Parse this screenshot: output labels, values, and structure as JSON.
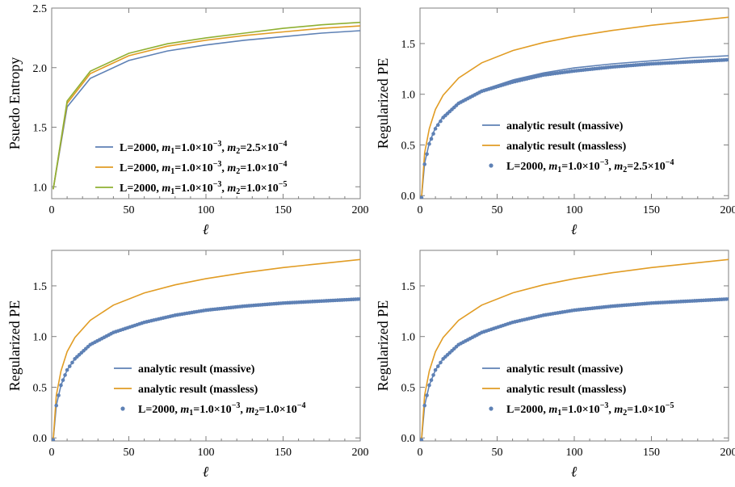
{
  "colors": {
    "massive": "#5e81b5",
    "massless": "#e19c24",
    "green": "#8fb032",
    "blue": "#5e81b5",
    "orange": "#e19c24"
  },
  "chart_data": [
    {
      "type": "line",
      "title": "",
      "xlabel": "ℓ",
      "ylabel": "Psuedo Entropy",
      "xlim": [
        0,
        200
      ],
      "ylim": [
        0.9,
        2.5
      ],
      "xticks": [
        0,
        50,
        100,
        150,
        200
      ],
      "xtick_labels": [
        "0",
        "50",
        "100",
        "150",
        "200"
      ],
      "yticks": [
        1.0,
        1.5,
        2.0,
        2.5
      ],
      "ytick_labels": [
        "1.0",
        "1.5",
        "2.0",
        "2.5"
      ],
      "legend_position": "bottom-right",
      "x": [
        1,
        10,
        25,
        50,
        75,
        100,
        125,
        150,
        175,
        200
      ],
      "series": [
        {
          "name": "L=2000, m1=1.0×10−3, m2=2.5×10−4",
          "legend": {
            "prefix": "L=2000, ",
            "m1": "=1.0×10",
            "e1": "−3",
            "m2": "=2.5×10",
            "e2": "−4"
          },
          "color": "#5e81b5",
          "style": "line",
          "values": [
            0.98,
            1.67,
            1.91,
            2.06,
            2.14,
            2.19,
            2.23,
            2.26,
            2.29,
            2.31
          ]
        },
        {
          "name": "L=2000, m1=1.0×10−3, m2=1.0×10−4",
          "legend": {
            "prefix": "L=2000, ",
            "m1": "=1.0×10",
            "e1": "−3",
            "m2": "=1.0×10",
            "e2": "−4"
          },
          "color": "#e19c24",
          "style": "line",
          "values": [
            0.98,
            1.7,
            1.95,
            2.1,
            2.18,
            2.23,
            2.27,
            2.3,
            2.33,
            2.35
          ]
        },
        {
          "name": "L=2000, m1=1.0×10−3, m2=1.0×10−5",
          "legend": {
            "prefix": "L=2000, ",
            "m1": "=1.0×10",
            "e1": "−3",
            "m2": "=1.0×10",
            "e2": "−5"
          },
          "color": "#8fb032",
          "style": "line",
          "values": [
            0.98,
            1.72,
            1.97,
            2.12,
            2.2,
            2.25,
            2.29,
            2.33,
            2.36,
            2.38
          ]
        }
      ]
    },
    {
      "type": "line",
      "title": "",
      "xlabel": "ℓ",
      "ylabel": "Regularized PE",
      "xlim": [
        0,
        200
      ],
      "ylim": [
        -0.03,
        1.85
      ],
      "xticks": [
        0,
        50,
        100,
        150,
        200
      ],
      "xtick_labels": [
        "0",
        "50",
        "100",
        "150",
        "200"
      ],
      "yticks": [
        0.0,
        0.5,
        1.0,
        1.5
      ],
      "ytick_labels": [
        "0.0",
        "0.5",
        "1.0",
        "1.5"
      ],
      "legend_position": "bottom-right",
      "x": [
        1,
        3,
        6,
        10,
        15,
        25,
        40,
        60,
        80,
        100,
        125,
        150,
        175,
        200
      ],
      "series": [
        {
          "name": "analytic result (massive)",
          "legend": {
            "text": "analytic result (massive)"
          },
          "color": "#5e81b5",
          "style": "line",
          "values": [
            -0.02,
            0.32,
            0.52,
            0.67,
            0.78,
            0.92,
            1.04,
            1.14,
            1.21,
            1.26,
            1.3,
            1.33,
            1.36,
            1.38
          ]
        },
        {
          "name": "analytic result (massless)",
          "legend": {
            "text": "analytic result (massless)"
          },
          "color": "#e19c24",
          "style": "line",
          "values": [
            -0.02,
            0.42,
            0.66,
            0.85,
            0.99,
            1.16,
            1.31,
            1.43,
            1.51,
            1.57,
            1.63,
            1.68,
            1.72,
            1.76
          ]
        },
        {
          "name": "L=2000, m1=1.0×10−3, m2=2.5×10−4",
          "legend": {
            "prefix": "L=2000, ",
            "m1": "=1.0×10",
            "e1": "−3",
            "m2": "=2.5×10",
            "e2": "−4"
          },
          "color": "#5e81b5",
          "style": "points",
          "values": [
            -0.02,
            0.31,
            0.51,
            0.66,
            0.77,
            0.91,
            1.03,
            1.12,
            1.19,
            1.23,
            1.27,
            1.3,
            1.32,
            1.34
          ]
        }
      ]
    },
    {
      "type": "line",
      "title": "",
      "xlabel": "ℓ",
      "ylabel": "Regularized PE",
      "xlim": [
        0,
        200
      ],
      "ylim": [
        -0.03,
        1.85
      ],
      "xticks": [
        0,
        50,
        100,
        150,
        200
      ],
      "xtick_labels": [
        "0",
        "50",
        "100",
        "150",
        "200"
      ],
      "yticks": [
        0.0,
        0.5,
        1.0,
        1.5
      ],
      "ytick_labels": [
        "0.0",
        "0.5",
        "1.0",
        "1.5"
      ],
      "legend_position": "bottom-right",
      "x": [
        1,
        3,
        6,
        10,
        15,
        25,
        40,
        60,
        80,
        100,
        125,
        150,
        175,
        200
      ],
      "series": [
        {
          "name": "analytic result (massive)",
          "legend": {
            "text": "analytic result (massive)"
          },
          "color": "#5e81b5",
          "style": "line",
          "values": [
            -0.02,
            0.32,
            0.52,
            0.67,
            0.78,
            0.92,
            1.04,
            1.14,
            1.21,
            1.26,
            1.3,
            1.33,
            1.35,
            1.37
          ]
        },
        {
          "name": "analytic result (massless)",
          "legend": {
            "text": "analytic result (massless)"
          },
          "color": "#e19c24",
          "style": "line",
          "values": [
            -0.02,
            0.42,
            0.66,
            0.85,
            0.99,
            1.16,
            1.31,
            1.43,
            1.51,
            1.57,
            1.63,
            1.68,
            1.72,
            1.76
          ]
        },
        {
          "name": "L=2000, m1=1.0×10−3, m2=1.0×10−4",
          "legend": {
            "prefix": "L=2000, ",
            "m1": "=1.0×10",
            "e1": "−3",
            "m2": "=1.0×10",
            "e2": "−4"
          },
          "color": "#5e81b5",
          "style": "points",
          "values": [
            -0.02,
            0.32,
            0.52,
            0.67,
            0.78,
            0.92,
            1.04,
            1.14,
            1.21,
            1.26,
            1.3,
            1.33,
            1.35,
            1.37
          ]
        }
      ]
    },
    {
      "type": "line",
      "title": "",
      "xlabel": "ℓ",
      "ylabel": "Regularized PE",
      "xlim": [
        0,
        200
      ],
      "ylim": [
        -0.03,
        1.85
      ],
      "xticks": [
        0,
        50,
        100,
        150,
        200
      ],
      "xtick_labels": [
        "0",
        "50",
        "100",
        "150",
        "200"
      ],
      "yticks": [
        0.0,
        0.5,
        1.0,
        1.5
      ],
      "ytick_labels": [
        "0.0",
        "0.5",
        "1.0",
        "1.5"
      ],
      "legend_position": "bottom-right",
      "x": [
        1,
        3,
        6,
        10,
        15,
        25,
        40,
        60,
        80,
        100,
        125,
        150,
        175,
        200
      ],
      "series": [
        {
          "name": "analytic result (massive)",
          "legend": {
            "text": "analytic result (massive)"
          },
          "color": "#5e81b5",
          "style": "line",
          "values": [
            -0.02,
            0.32,
            0.52,
            0.67,
            0.78,
            0.92,
            1.04,
            1.14,
            1.21,
            1.26,
            1.3,
            1.33,
            1.35,
            1.37
          ]
        },
        {
          "name": "analytic result (massless)",
          "legend": {
            "text": "analytic result (massless)"
          },
          "color": "#e19c24",
          "style": "line",
          "values": [
            -0.02,
            0.42,
            0.66,
            0.85,
            0.99,
            1.16,
            1.31,
            1.43,
            1.51,
            1.57,
            1.63,
            1.68,
            1.72,
            1.76
          ]
        },
        {
          "name": "L=2000, m1=1.0×10−3, m2=1.0×10−5",
          "legend": {
            "prefix": "L=2000, ",
            "m1": "=1.0×10",
            "e1": "−3",
            "m2": "=1.0×10",
            "e2": "−5"
          },
          "color": "#5e81b5",
          "style": "points",
          "values": [
            -0.02,
            0.32,
            0.52,
            0.67,
            0.78,
            0.92,
            1.04,
            1.14,
            1.21,
            1.26,
            1.3,
            1.33,
            1.35,
            1.37
          ]
        }
      ]
    }
  ]
}
